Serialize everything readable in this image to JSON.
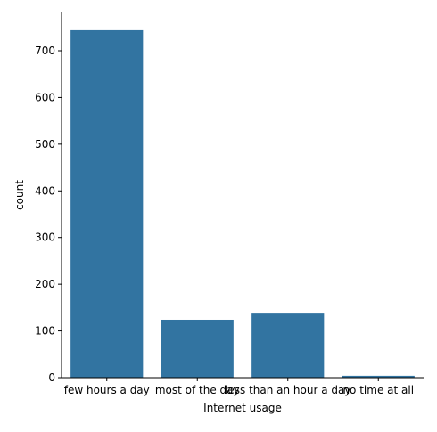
{
  "chart_data": {
    "type": "bar",
    "categories": [
      "few hours a day",
      "most of the day",
      "less than an hour a day",
      "no time at all"
    ],
    "values": [
      744,
      124,
      139,
      4
    ],
    "xlabel": "Internet usage",
    "ylabel": "count",
    "ylim": [
      0,
      782
    ],
    "yticks": [
      0,
      100,
      200,
      300,
      400,
      500,
      600,
      700
    ],
    "bar_color": "#3274a1",
    "grid": false,
    "legend": "none"
  }
}
